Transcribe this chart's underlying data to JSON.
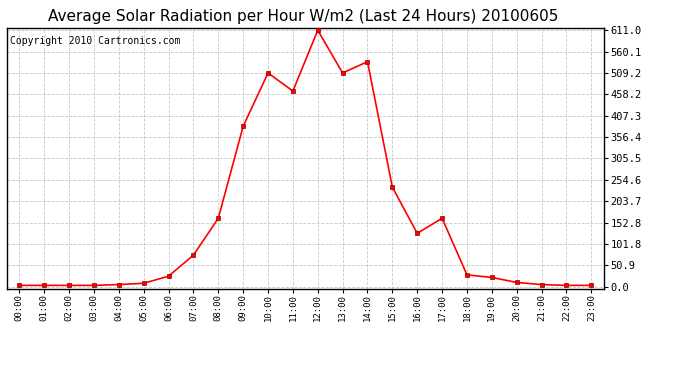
{
  "title": "Average Solar Radiation per Hour W/m2 (Last 24 Hours) 20100605",
  "copyright": "Copyright 2010 Cartronics.com",
  "hours": [
    "00:00",
    "01:00",
    "02:00",
    "03:00",
    "04:00",
    "05:00",
    "06:00",
    "07:00",
    "08:00",
    "09:00",
    "10:00",
    "11:00",
    "12:00",
    "13:00",
    "14:00",
    "15:00",
    "16:00",
    "17:00",
    "18:00",
    "19:00",
    "20:00",
    "21:00",
    "22:00",
    "23:00"
  ],
  "values": [
    3.0,
    3.0,
    3.0,
    3.0,
    5.0,
    8.0,
    25.0,
    75.0,
    163.0,
    382.0,
    509.2,
    466.0,
    611.0,
    509.2,
    536.0,
    237.0,
    127.0,
    163.0,
    28.0,
    22.0,
    10.0,
    5.0,
    3.0,
    3.0
  ],
  "yticks": [
    0.0,
    50.9,
    101.8,
    152.8,
    203.7,
    254.6,
    305.5,
    356.4,
    407.3,
    458.2,
    509.2,
    560.1,
    611.0
  ],
  "line_color": "#ff0000",
  "background_color": "#ffffff",
  "grid_color": "#bbbbbb",
  "title_fontsize": 11,
  "copyright_fontsize": 7
}
